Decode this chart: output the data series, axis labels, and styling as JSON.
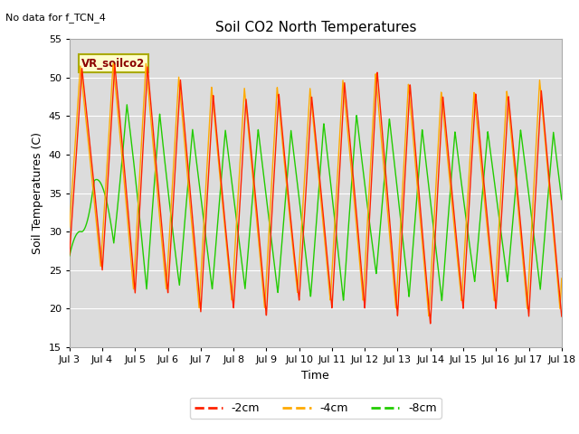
{
  "title": "Soil CO2 North Temperatures",
  "top_left_text": "No data for f_TCN_4",
  "ylabel": "Soil Temperatures (C)",
  "xlabel": "Time",
  "ylim": [
    15,
    55
  ],
  "background_color": "#dcdcdc",
  "legend_label": "VR_soilco2",
  "legend_bg": "#ffffcc",
  "legend_border": "#aaaa00",
  "series": {
    "-2cm": {
      "color": "#ff2200",
      "label": "-2cm"
    },
    "-4cm": {
      "color": "#ffaa00",
      "label": "-4cm"
    },
    "-8cm": {
      "color": "#22cc00",
      "label": "-8cm"
    }
  },
  "xtick_labels": [
    "Jul 3",
    "Jul 4",
    "Jul 5",
    "Jul 6",
    "Jul 7",
    "Jul 8",
    "Jul 9",
    "Jul 10",
    "Jul 11",
    "Jul 12",
    "Jul 13",
    "Jul 14",
    "Jul 15",
    "Jul 16",
    "Jul 17",
    "Jul 18"
  ],
  "figsize": [
    6.4,
    4.8
  ],
  "dpi": 100
}
